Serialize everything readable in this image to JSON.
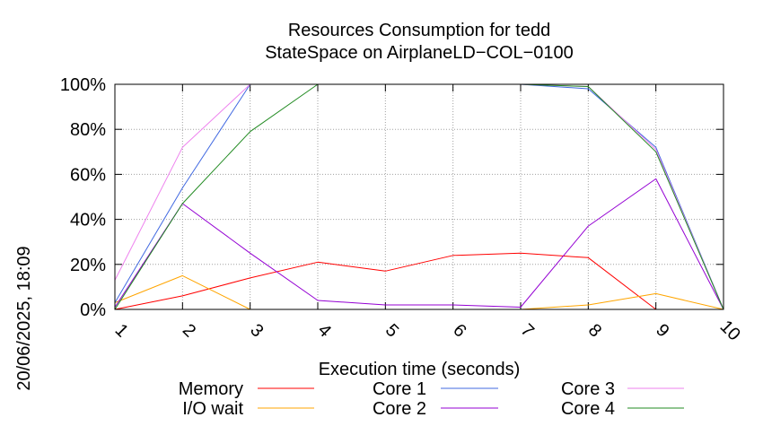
{
  "chart_data": {
    "type": "line",
    "title": "Resources Consumption for tedd",
    "subtitle": "StateSpace on AirplaneLD−COL−0100",
    "xlabel": "Execution time (seconds)",
    "ylabel": "",
    "side_label": "20/06/2025, 18:09",
    "x": [
      1,
      2,
      3,
      4,
      5,
      6,
      7,
      8,
      9,
      10
    ],
    "x_tick_labels": [
      "1",
      "2",
      "3",
      "4",
      "5",
      "6",
      "7",
      "8",
      "9",
      "10"
    ],
    "y_tick_values": [
      0,
      20,
      40,
      60,
      80,
      100
    ],
    "y_tick_labels": [
      "0%",
      "20%",
      "40%",
      "60%",
      "80%",
      "100%"
    ],
    "xlim": [
      1,
      10
    ],
    "ylim": [
      0,
      100
    ],
    "grid": true,
    "legend_position": "bottom",
    "series": [
      {
        "name": "Memory",
        "color": "#ff0000",
        "values": [
          0,
          6,
          14,
          21,
          17,
          24,
          25,
          23,
          0,
          0
        ]
      },
      {
        "name": "I/O wait",
        "color": "#ffa500",
        "values": [
          3,
          15,
          0,
          0,
          0,
          0,
          0,
          2,
          7,
          0
        ]
      },
      {
        "name": "Core 1",
        "color": "#4169e1",
        "values": [
          3,
          54,
          100,
          100,
          100,
          100,
          100,
          98,
          72,
          0
        ]
      },
      {
        "name": "Core 2",
        "color": "#9400d3",
        "values": [
          1,
          47,
          25,
          4,
          2,
          2,
          1,
          37,
          58,
          0
        ]
      },
      {
        "name": "Core 3",
        "color": "#ee82ee",
        "values": [
          13,
          72,
          100,
          100,
          100,
          100,
          100,
          99,
          71,
          0
        ]
      },
      {
        "name": "Core 4",
        "color": "#228b22",
        "values": [
          0,
          47,
          79,
          100,
          100,
          100,
          100,
          99,
          70,
          0
        ]
      }
    ]
  }
}
